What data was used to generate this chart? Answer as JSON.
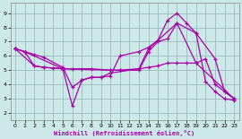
{
  "background_color": "#cce8e8",
  "line_color": "#aa00aa",
  "grid_color": "#99bbbb",
  "xlabel": "Windchill (Refroidissement éolien,°C)",
  "xlim": [
    -0.5,
    23.5
  ],
  "ylim": [
    1.5,
    9.7
  ],
  "xticks": [
    0,
    1,
    2,
    3,
    4,
    5,
    6,
    7,
    8,
    9,
    10,
    11,
    12,
    13,
    14,
    15,
    16,
    17,
    18,
    19,
    20,
    21,
    22,
    23
  ],
  "yticks": [
    2,
    3,
    4,
    5,
    6,
    7,
    8,
    9
  ],
  "series": [
    {
      "x": [
        0,
        1,
        2,
        3,
        5,
        6,
        7,
        8,
        9,
        10,
        11,
        13,
        14,
        15,
        16,
        17,
        18,
        19,
        20,
        21,
        22,
        23
      ],
      "y": [
        6.5,
        6.3,
        6.1,
        5.9,
        5.2,
        3.8,
        4.3,
        4.5,
        4.5,
        4.6,
        6.0,
        6.3,
        6.6,
        7.1,
        8.5,
        9.0,
        8.3,
        7.6,
        4.2,
        3.5,
        3.0,
        2.9
      ]
    },
    {
      "x": [
        0,
        1,
        2,
        3,
        4,
        5,
        6,
        7,
        8,
        9,
        10,
        14,
        15,
        16,
        17,
        18,
        19,
        20,
        21,
        22,
        23
      ],
      "y": [
        6.5,
        6.3,
        5.3,
        5.2,
        5.15,
        5.1,
        2.5,
        4.3,
        4.5,
        4.5,
        4.8,
        5.2,
        5.3,
        5.5,
        5.5,
        5.5,
        5.5,
        5.8,
        4.0,
        3.5,
        3.0
      ]
    },
    {
      "x": [
        0,
        2,
        3,
        5,
        6,
        7,
        8,
        10,
        11,
        13,
        14,
        15,
        16,
        17,
        19,
        21,
        22,
        23
      ],
      "y": [
        6.5,
        5.3,
        5.2,
        5.1,
        5.1,
        5.1,
        5.1,
        5.0,
        5.0,
        5.0,
        6.3,
        7.0,
        7.2,
        8.3,
        7.6,
        5.8,
        3.5,
        3.0
      ]
    },
    {
      "x": [
        0,
        1,
        5,
        10,
        11,
        13,
        14,
        17,
        19,
        23
      ],
      "y": [
        6.5,
        6.3,
        5.1,
        5.0,
        5.0,
        5.1,
        6.5,
        8.3,
        5.5,
        3.0
      ]
    }
  ]
}
